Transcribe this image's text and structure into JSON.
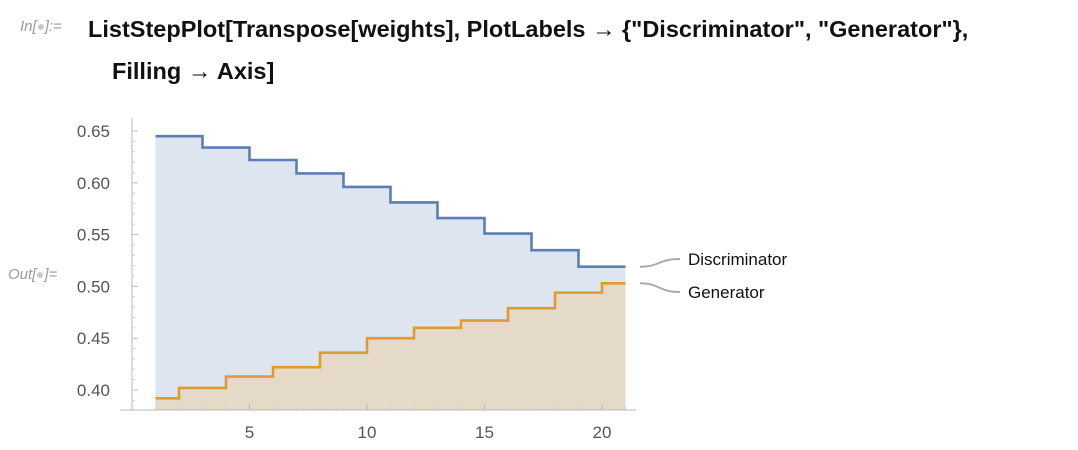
{
  "notebook": {
    "in_prompt": "In[",
    "in_prompt_end": "]:=",
    "out_prompt": "Out[",
    "out_prompt_end": "]=",
    "code_line1": "ListStepPlot[Transpose[weights], PlotLabels → {\"Discriminator\", \"Generator\"},",
    "code_line2": "Filling → Axis]"
  },
  "chart_data": {
    "type": "line",
    "step": true,
    "filling": "axis",
    "title": "",
    "xlabel": "",
    "ylabel": "",
    "xlim": [
      0,
      22
    ],
    "ylim": [
      0.378,
      0.665
    ],
    "x_ticks": [
      5,
      10,
      15,
      20
    ],
    "y_ticks": [
      0.4,
      0.45,
      0.5,
      0.55,
      0.6,
      0.65
    ],
    "x_tick_labels": [
      "5",
      "10",
      "15",
      "20"
    ],
    "y_tick_labels": [
      "0.40",
      "0.45",
      "0.50",
      "0.55",
      "0.60",
      "0.65"
    ],
    "grid": false,
    "legend_placement": "right, labels at line ends",
    "x": [
      1,
      2,
      3,
      4,
      5,
      6,
      7,
      8,
      9,
      10,
      11,
      12,
      13,
      14,
      15,
      16,
      17,
      18,
      19,
      20,
      21
    ],
    "series": [
      {
        "name": "Discriminator",
        "color": "#5b7fb5",
        "fill_color": "#dde5f0",
        "values": [
          0.645,
          0.645,
          0.634,
          0.634,
          0.622,
          0.622,
          0.609,
          0.609,
          0.596,
          0.596,
          0.581,
          0.581,
          0.566,
          0.566,
          0.551,
          0.551,
          0.535,
          0.535,
          0.519,
          0.519,
          0.519
        ]
      },
      {
        "name": "Generator",
        "color": "#e09b2d",
        "fill_color": "#e6d8c0",
        "values": [
          0.392,
          0.402,
          0.402,
          0.413,
          0.413,
          0.422,
          0.422,
          0.436,
          0.436,
          0.45,
          0.45,
          0.46,
          0.46,
          0.467,
          0.467,
          0.479,
          0.479,
          0.494,
          0.494,
          0.503,
          0.503
        ]
      }
    ]
  }
}
